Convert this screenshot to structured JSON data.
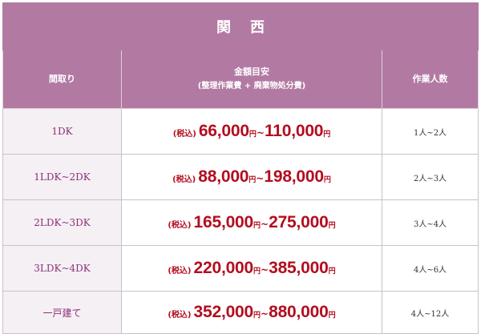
{
  "title": "関西",
  "headers": {
    "layout": "間取り",
    "price_line1": "金額目安",
    "price_line2": "(整理作業費 + 廃棄物処分費)",
    "people": "作業人数"
  },
  "tax_label": "(税込)",
  "yen": "円",
  "tilde": "~",
  "rows": [
    {
      "layout": "1DK",
      "min": "66,000",
      "max": "110,000",
      "people": "1人~2人"
    },
    {
      "layout": "1LDK~2DK",
      "min": "88,000",
      "max": "198,000",
      "people": "2人~3人"
    },
    {
      "layout": "2LDK~3DK",
      "min": "165,000",
      "max": "275,000",
      "people": "3人~4人"
    },
    {
      "layout": "3LDK~4DK",
      "min": "220,000",
      "max": "385,000",
      "people": "4人~6人"
    },
    {
      "layout": "一戸建て",
      "min": "352,000",
      "max": "880,000",
      "people": "4人~12人"
    }
  ],
  "colors": {
    "header_bg": "#b27aa3",
    "layout_text": "#8b2f78",
    "price_text": "#b30d1f",
    "layout_bg": "#f5f0f4"
  }
}
